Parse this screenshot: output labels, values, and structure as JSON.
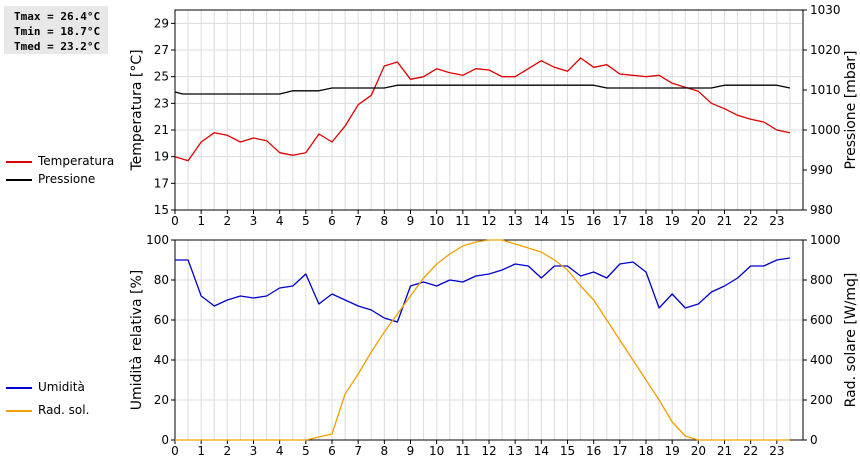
{
  "stats": {
    "tmax": "Tmax = 26.4°C",
    "tmin": "Tmin = 18.7°C",
    "tmed": "Tmed = 23.2°C"
  },
  "legend_top": [
    {
      "label": "Temperatura",
      "color": "#dd0000"
    },
    {
      "label": "Pressione",
      "color": "#000000"
    }
  ],
  "legend_bottom": [
    {
      "label": "Umidità",
      "color": "#0000cc"
    },
    {
      "label": "Rad. sol.",
      "color": "#f0a000"
    }
  ],
  "chart_data": [
    {
      "type": "line",
      "ylabel": "Temperatura [°C]",
      "y2label": "Pressione [mbar]",
      "xlim": [
        0,
        24
      ],
      "ylim": [
        15,
        30
      ],
      "y2lim": [
        980,
        1030
      ],
      "x_ticks": [
        0,
        1,
        2,
        3,
        4,
        5,
        6,
        7,
        8,
        9,
        10,
        11,
        12,
        13,
        14,
        15,
        16,
        17,
        18,
        19,
        20,
        21,
        22,
        23
      ],
      "y_ticks": [
        15,
        17,
        19,
        21,
        23,
        25,
        27,
        29
      ],
      "y2_ticks": [
        980,
        990,
        1000,
        1010,
        1020,
        1030
      ],
      "grid": true,
      "legend_placement": "left",
      "series": [
        {
          "name": "Temperatura",
          "axis": "left",
          "color": "#dd0000",
          "points": [
            [
              0,
              19.0
            ],
            [
              0.5,
              18.7
            ],
            [
              1,
              20.1
            ],
            [
              1.5,
              20.8
            ],
            [
              2,
              20.6
            ],
            [
              2.5,
              20.1
            ],
            [
              3,
              20.4
            ],
            [
              3.5,
              20.2
            ],
            [
              4,
              19.3
            ],
            [
              4.5,
              19.1
            ],
            [
              5,
              19.3
            ],
            [
              5.5,
              20.7
            ],
            [
              6,
              20.1
            ],
            [
              6.5,
              21.3
            ],
            [
              7,
              22.9
            ],
            [
              7.5,
              23.6
            ],
            [
              8,
              25.8
            ],
            [
              8.5,
              26.1
            ],
            [
              9,
              24.8
            ],
            [
              9.5,
              25.0
            ],
            [
              10,
              25.6
            ],
            [
              10.5,
              25.3
            ],
            [
              11,
              25.1
            ],
            [
              11.5,
              25.6
            ],
            [
              12,
              25.5
            ],
            [
              12.5,
              25.0
            ],
            [
              13,
              25.0
            ],
            [
              13.5,
              25.6
            ],
            [
              14,
              26.2
            ],
            [
              14.5,
              25.7
            ],
            [
              15,
              25.4
            ],
            [
              15.5,
              26.4
            ],
            [
              16,
              25.7
            ],
            [
              16.5,
              25.9
            ],
            [
              17,
              25.2
            ],
            [
              17.5,
              25.1
            ],
            [
              18,
              25.0
            ],
            [
              18.5,
              25.1
            ],
            [
              19,
              24.5
            ],
            [
              19.5,
              24.2
            ],
            [
              20,
              23.9
            ],
            [
              20.5,
              23.0
            ],
            [
              21,
              22.6
            ],
            [
              21.5,
              22.1
            ],
            [
              22,
              21.8
            ],
            [
              22.5,
              21.6
            ],
            [
              23,
              21.0
            ],
            [
              23.5,
              20.8
            ]
          ]
        },
        {
          "name": "Pressione",
          "axis": "right",
          "color": "#000000",
          "points": [
            [
              0,
              1009.5
            ],
            [
              0.3,
              1009.0
            ],
            [
              1,
              1009.0
            ],
            [
              2,
              1009.0
            ],
            [
              3,
              1009.0
            ],
            [
              4,
              1009.0
            ],
            [
              4.5,
              1009.8
            ],
            [
              5,
              1009.8
            ],
            [
              5.5,
              1009.8
            ],
            [
              6,
              1010.5
            ],
            [
              7,
              1010.5
            ],
            [
              8,
              1010.5
            ],
            [
              8.5,
              1011.2
            ],
            [
              9,
              1011.2
            ],
            [
              10,
              1011.2
            ],
            [
              11,
              1011.2
            ],
            [
              12,
              1011.2
            ],
            [
              13,
              1011.2
            ],
            [
              14,
              1011.2
            ],
            [
              15,
              1011.2
            ],
            [
              16,
              1011.2
            ],
            [
              16.5,
              1010.5
            ],
            [
              17,
              1010.5
            ],
            [
              18,
              1010.5
            ],
            [
              19,
              1010.5
            ],
            [
              20,
              1010.5
            ],
            [
              20.5,
              1010.5
            ],
            [
              21,
              1011.2
            ],
            [
              22,
              1011.2
            ],
            [
              23,
              1011.2
            ],
            [
              23.5,
              1010.5
            ]
          ]
        }
      ]
    },
    {
      "type": "line",
      "ylabel": "Umidità relativa [%]",
      "y2label": "Rad. solare [W/mq]",
      "xlim": [
        0,
        24
      ],
      "ylim": [
        0,
        100
      ],
      "y2lim": [
        0,
        1000
      ],
      "x_ticks": [
        0,
        1,
        2,
        3,
        4,
        5,
        6,
        7,
        8,
        9,
        10,
        11,
        12,
        13,
        14,
        15,
        16,
        17,
        18,
        19,
        20,
        21,
        22,
        23
      ],
      "y_ticks": [
        0,
        20,
        40,
        60,
        80,
        100
      ],
      "y2_ticks": [
        0,
        200,
        400,
        600,
        800,
        1000
      ],
      "grid": true,
      "legend_placement": "left",
      "series": [
        {
          "name": "Umidità",
          "axis": "left",
          "color": "#0000cc",
          "points": [
            [
              0,
              90
            ],
            [
              0.5,
              90
            ],
            [
              1,
              72
            ],
            [
              1.5,
              67
            ],
            [
              2,
              70
            ],
            [
              2.5,
              72
            ],
            [
              3,
              71
            ],
            [
              3.5,
              72
            ],
            [
              4,
              76
            ],
            [
              4.5,
              77
            ],
            [
              5,
              83
            ],
            [
              5.5,
              68
            ],
            [
              6,
              73
            ],
            [
              6.5,
              70
            ],
            [
              7,
              67
            ],
            [
              7.5,
              65
            ],
            [
              8,
              61
            ],
            [
              8.5,
              59
            ],
            [
              9,
              77
            ],
            [
              9.5,
              79
            ],
            [
              10,
              77
            ],
            [
              10.5,
              80
            ],
            [
              11,
              79
            ],
            [
              11.5,
              82
            ],
            [
              12,
              83
            ],
            [
              12.5,
              85
            ],
            [
              13,
              88
            ],
            [
              13.5,
              87
            ],
            [
              14,
              81
            ],
            [
              14.5,
              87
            ],
            [
              15,
              87
            ],
            [
              15.5,
              82
            ],
            [
              16,
              84
            ],
            [
              16.5,
              81
            ],
            [
              17,
              88
            ],
            [
              17.5,
              89
            ],
            [
              18,
              84
            ],
            [
              18.5,
              66
            ],
            [
              19,
              73
            ],
            [
              19.5,
              66
            ],
            [
              20,
              68
            ],
            [
              20.5,
              74
            ],
            [
              21,
              77
            ],
            [
              21.5,
              81
            ],
            [
              22,
              87
            ],
            [
              22.5,
              87
            ],
            [
              23,
              90
            ],
            [
              23.5,
              91
            ]
          ]
        },
        {
          "name": "Rad. sol.",
          "axis": "right",
          "color": "#f0a000",
          "points": [
            [
              0,
              0
            ],
            [
              1,
              0
            ],
            [
              2,
              0
            ],
            [
              3,
              0
            ],
            [
              4,
              0
            ],
            [
              5,
              0
            ],
            [
              5.5,
              15
            ],
            [
              6,
              30
            ],
            [
              6.5,
              230
            ],
            [
              7,
              330
            ],
            [
              7.5,
              440
            ],
            [
              8,
              540
            ],
            [
              8.5,
              630
            ],
            [
              9,
              720
            ],
            [
              9.5,
              810
            ],
            [
              10,
              880
            ],
            [
              10.5,
              930
            ],
            [
              11,
              970
            ],
            [
              11.5,
              990
            ],
            [
              12,
              1000
            ],
            [
              12.5,
              1000
            ],
            [
              13,
              980
            ],
            [
              13.5,
              960
            ],
            [
              14,
              940
            ],
            [
              14.5,
              900
            ],
            [
              15,
              850
            ],
            [
              15.5,
              770
            ],
            [
              16,
              700
            ],
            [
              16.5,
              600
            ],
            [
              17,
              500
            ],
            [
              17.5,
              400
            ],
            [
              18,
              300
            ],
            [
              18.5,
              200
            ],
            [
              19,
              90
            ],
            [
              19.5,
              20
            ],
            [
              20,
              0
            ],
            [
              21,
              0
            ],
            [
              22,
              0
            ],
            [
              23,
              0
            ],
            [
              23.5,
              0
            ]
          ]
        }
      ]
    }
  ]
}
